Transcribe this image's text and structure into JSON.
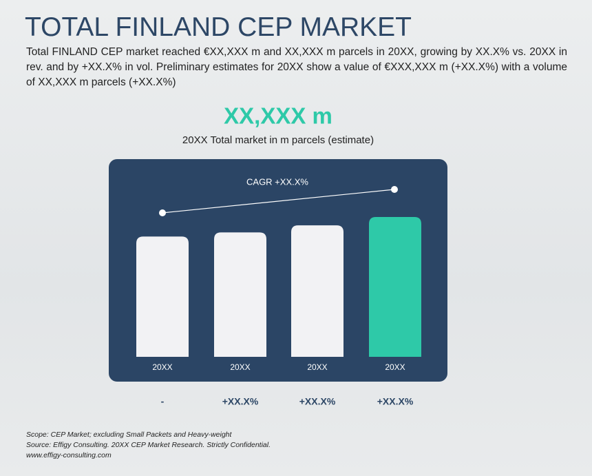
{
  "header": {
    "title": "TOTAL FINLAND CEP MARKET",
    "description": "Total FINLAND CEP market reached €XX,XXX m and XX,XXX m parcels in 20XX, growing by XX.X% vs. 20XX in rev. and by +XX.X% in vol. Preliminary estimates for 20XX show a value of €XXX,XXX m (+XX.X%) with a volume of XX,XXX m parcels (+XX.X%)"
  },
  "chart_data": {
    "type": "bar",
    "title": "XX,XXX m",
    "subtitle": "20XX Total market in m parcels (estimate)",
    "categories": [
      "20XX",
      "20XX",
      "20XX",
      "20XX"
    ],
    "values": [
      86,
      89,
      94,
      100
    ],
    "colors": [
      "#f2f2f4",
      "#f2f2f4",
      "#f2f2f4",
      "#2ec9a8"
    ],
    "ylim": [
      0,
      100
    ],
    "annotation": "CAGR +XX.X%",
    "growth_labels": [
      "-",
      "+XX.X%",
      "+XX.X%",
      "+XX.X%"
    ]
  },
  "footer": {
    "notes": [
      "Scope: CEP Market; excluding Small Packets and Heavy-weight",
      "Source: Effigy Consulting. 20XX CEP Market Research. Strictly Confidential.",
      "www.effigy-consulting.com"
    ]
  }
}
